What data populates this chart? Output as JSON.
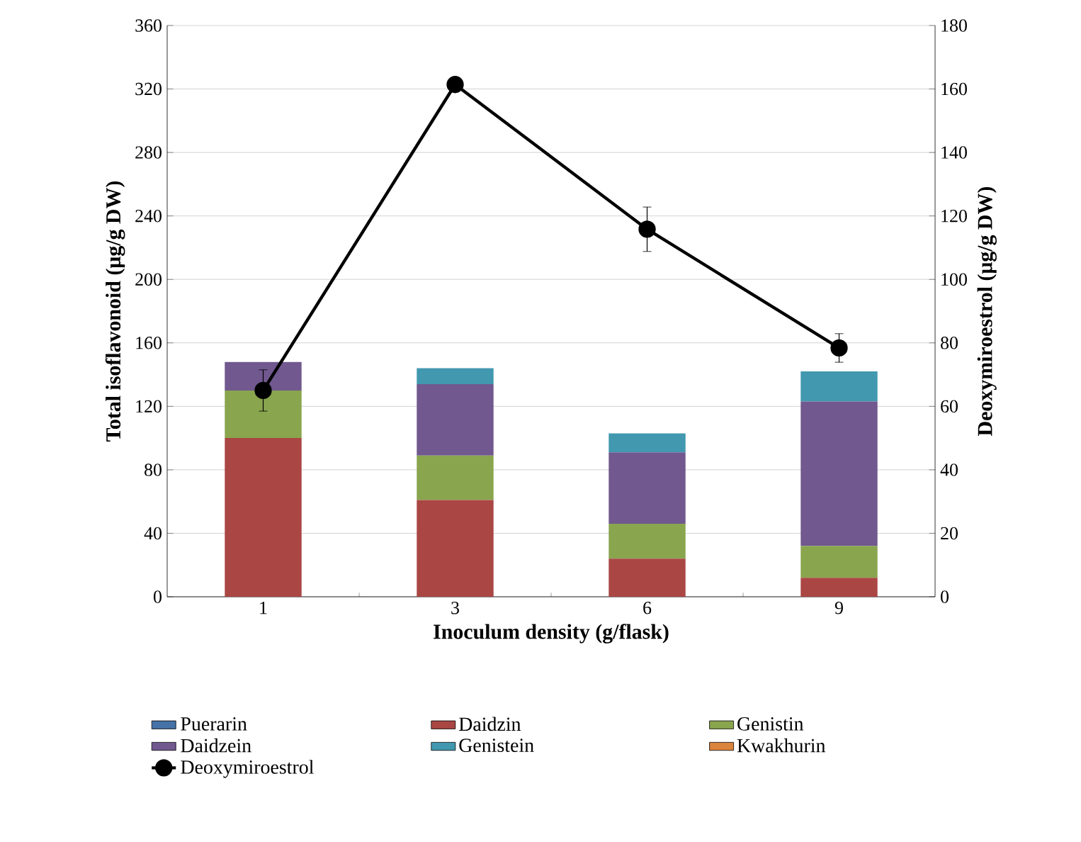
{
  "chart_data": {
    "type": "bar",
    "stacked": true,
    "xlabel": "Inoculum density (g/flask)",
    "ylabel": "Total isoflavonoid (μg/g DW)",
    "y2label": "Deoxymiroestrol (μg/g DW)",
    "categories": [
      "1",
      "3",
      "6",
      "9"
    ],
    "series": [
      {
        "name": "Puerarin",
        "color": "#4572a7",
        "values": [
          0,
          0,
          0,
          0
        ]
      },
      {
        "name": "Daidzin",
        "color": "#aa4643",
        "values": [
          100,
          61,
          24,
          12
        ]
      },
      {
        "name": "Genistin",
        "color": "#89a54e",
        "values": [
          30,
          28,
          22,
          20
        ]
      },
      {
        "name": "Daidzein",
        "color": "#71588f",
        "values": [
          18,
          45,
          45,
          91
        ]
      },
      {
        "name": "Genistein",
        "color": "#4198af",
        "values": [
          0,
          10,
          12,
          19
        ]
      },
      {
        "name": "Kwakhurin",
        "color": "#db843d",
        "values": [
          0,
          0,
          0,
          0
        ]
      },
      {
        "name": "Deoxymiroestrol",
        "type": "line",
        "axis": "y2",
        "color": "#000000",
        "marker": "circle",
        "line_style": "solid",
        "values": [
          65,
          161.4,
          115.8,
          78.4
        ],
        "errors": [
          6.5,
          null,
          7,
          4.5
        ]
      }
    ],
    "ylim": [
      0,
      360
    ],
    "yticks": [
      0,
      40,
      80,
      120,
      160,
      200,
      240,
      280,
      320,
      360
    ],
    "y2lim": [
      0,
      180
    ],
    "y2ticks": [
      0,
      20,
      40,
      60,
      80,
      100,
      120,
      140,
      160,
      180
    ],
    "grid": "y",
    "legend": "bottom"
  }
}
